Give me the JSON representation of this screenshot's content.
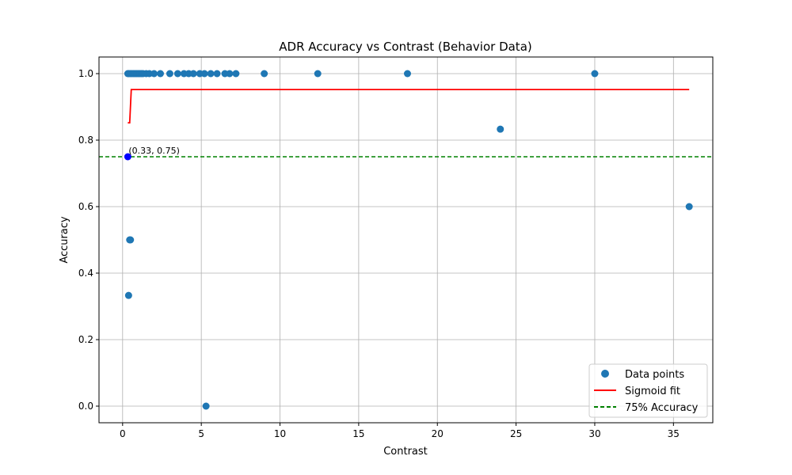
{
  "chart_data": {
    "type": "scatter",
    "title": "ADR Accuracy vs Contrast (Behavior Data)",
    "xlabel": "Contrast",
    "ylabel": "Accuracy",
    "xlim": [
      -1.5,
      37.5
    ],
    "ylim": [
      -0.05,
      1.05
    ],
    "xticks": [
      0,
      5,
      10,
      15,
      20,
      25,
      30,
      35
    ],
    "yticks": [
      0.0,
      0.2,
      0.4,
      0.6,
      0.8,
      1.0
    ],
    "grid": true,
    "legend_position": "lower-right",
    "colors": {
      "data_points": "#1f77b4",
      "sigmoid": "#ff0000",
      "threshold": "#008000",
      "highlight": "#0000ff"
    },
    "series": [
      {
        "name": "Data points",
        "kind": "scatter",
        "points": [
          [
            0.33,
            1.0
          ],
          [
            0.4,
            1.0
          ],
          [
            0.5,
            1.0
          ],
          [
            0.6,
            1.0
          ],
          [
            0.7,
            1.0
          ],
          [
            0.8,
            1.0
          ],
          [
            0.9,
            1.0
          ],
          [
            1.0,
            1.0
          ],
          [
            1.1,
            1.0
          ],
          [
            1.2,
            1.0
          ],
          [
            1.3,
            1.0
          ],
          [
            1.5,
            1.0
          ],
          [
            1.7,
            1.0
          ],
          [
            2.0,
            1.0
          ],
          [
            2.4,
            1.0
          ],
          [
            3.0,
            1.0
          ],
          [
            3.5,
            1.0
          ],
          [
            3.9,
            1.0
          ],
          [
            4.2,
            1.0
          ],
          [
            4.5,
            1.0
          ],
          [
            4.9,
            1.0
          ],
          [
            5.2,
            1.0
          ],
          [
            5.6,
            1.0
          ],
          [
            6.0,
            1.0
          ],
          [
            6.5,
            1.0
          ],
          [
            6.8,
            1.0
          ],
          [
            7.2,
            1.0
          ],
          [
            9.0,
            1.0
          ],
          [
            12.4,
            1.0
          ],
          [
            18.1,
            1.0
          ],
          [
            30.0,
            1.0
          ],
          [
            24.0,
            0.833
          ],
          [
            36.0,
            0.6
          ],
          [
            0.45,
            0.5
          ],
          [
            0.5,
            0.5
          ],
          [
            0.38,
            0.333
          ],
          [
            5.3,
            0.0
          ]
        ]
      },
      {
        "name": "Sigmoid fit",
        "kind": "line",
        "points": [
          [
            0.33,
            0.852
          ],
          [
            0.45,
            0.852
          ],
          [
            0.55,
            0.952
          ],
          [
            36.0,
            0.952
          ]
        ]
      },
      {
        "name": "75% Accuracy",
        "kind": "hline",
        "y": 0.75
      }
    ],
    "highlight_point": {
      "x": 0.33,
      "y": 0.75,
      "label": "(0.33, 0.75)"
    }
  }
}
